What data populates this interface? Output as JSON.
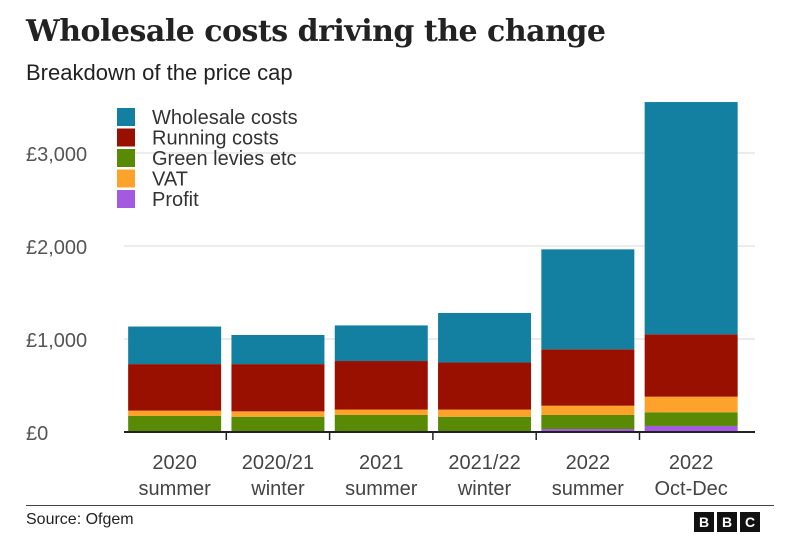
{
  "title": "Wholesale costs driving the change",
  "subtitle": "Breakdown of the price cap",
  "source": "Source: Ofgem",
  "logo_text": "BBC",
  "chart_data": {
    "type": "bar",
    "stacked": true,
    "title": "Wholesale costs driving the change",
    "subtitle": "Breakdown of the price cap",
    "categories": [
      [
        "2020",
        "summer"
      ],
      [
        "2020/21",
        "winter"
      ],
      [
        "2021",
        "summer"
      ],
      [
        "2021/22",
        "winter"
      ],
      [
        "2022",
        "summer"
      ],
      [
        "2022",
        "Oct-Dec"
      ]
    ],
    "series": [
      {
        "name": "Profit",
        "color": "#a35ae0",
        "values": [
          0,
          0,
          0,
          0,
          32,
          65
        ]
      },
      {
        "name": "Green levies etc",
        "color": "#588a05",
        "values": [
          172,
          164,
          183,
          164,
          151,
          147
        ]
      },
      {
        "name": "VAT",
        "color": "#fda32b",
        "values": [
          58,
          58,
          58,
          77,
          100,
          168
        ]
      },
      {
        "name": "Running costs",
        "color": "#990f00",
        "values": [
          500,
          508,
          522,
          506,
          606,
          670
        ]
      },
      {
        "name": "Wholesale costs",
        "color": "#1380a1",
        "values": [
          404,
          313,
          383,
          533,
          1075,
          2498
        ]
      }
    ],
    "legend_order": [
      "Wholesale costs",
      "Running costs",
      "Green levies etc",
      "VAT",
      "Profit"
    ],
    "legend_position": "top-left",
    "ylim": [
      0,
      3600
    ],
    "yticks": [
      0,
      1000,
      2000,
      3000
    ],
    "ytick_labels": [
      "£0",
      "£1,000",
      "£2,000",
      "£3,000"
    ],
    "grid": true,
    "xlabel": "",
    "ylabel": ""
  }
}
